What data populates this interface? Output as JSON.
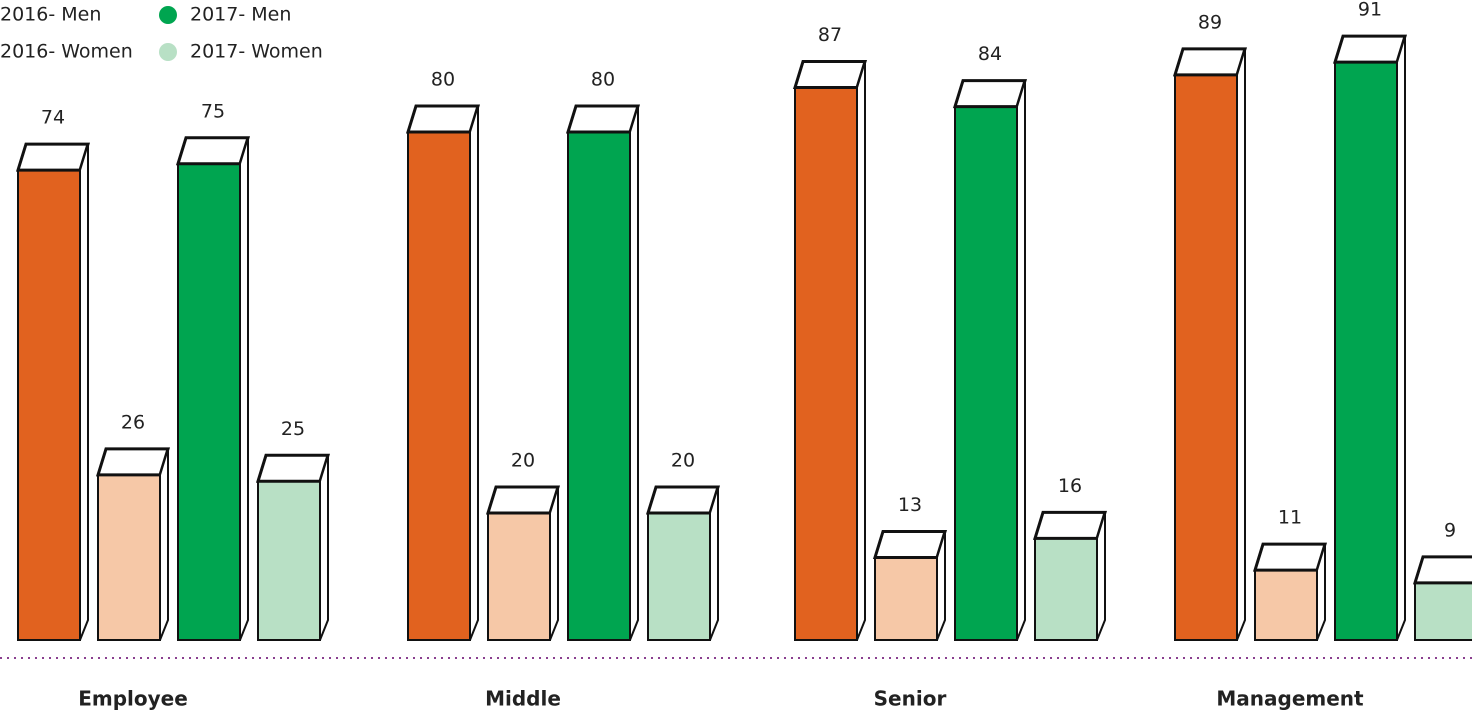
{
  "chart_data": {
    "type": "bar",
    "categories": [
      "Employee",
      "Middle",
      "Senior",
      "Management"
    ],
    "series": [
      {
        "name": "2016- Men",
        "color": "#e1621f",
        "values": [
          74,
          80,
          87,
          89
        ]
      },
      {
        "name": "2016- Women",
        "color": "#f6c8a7",
        "values": [
          26,
          20,
          13,
          11
        ]
      },
      {
        "name": "2017- Men",
        "color": "#00a550",
        "values": [
          75,
          80,
          84,
          91
        ]
      },
      {
        "name": "2017- Women",
        "color": "#b8e0c5",
        "values": [
          25,
          20,
          16,
          9
        ]
      }
    ]
  }
}
